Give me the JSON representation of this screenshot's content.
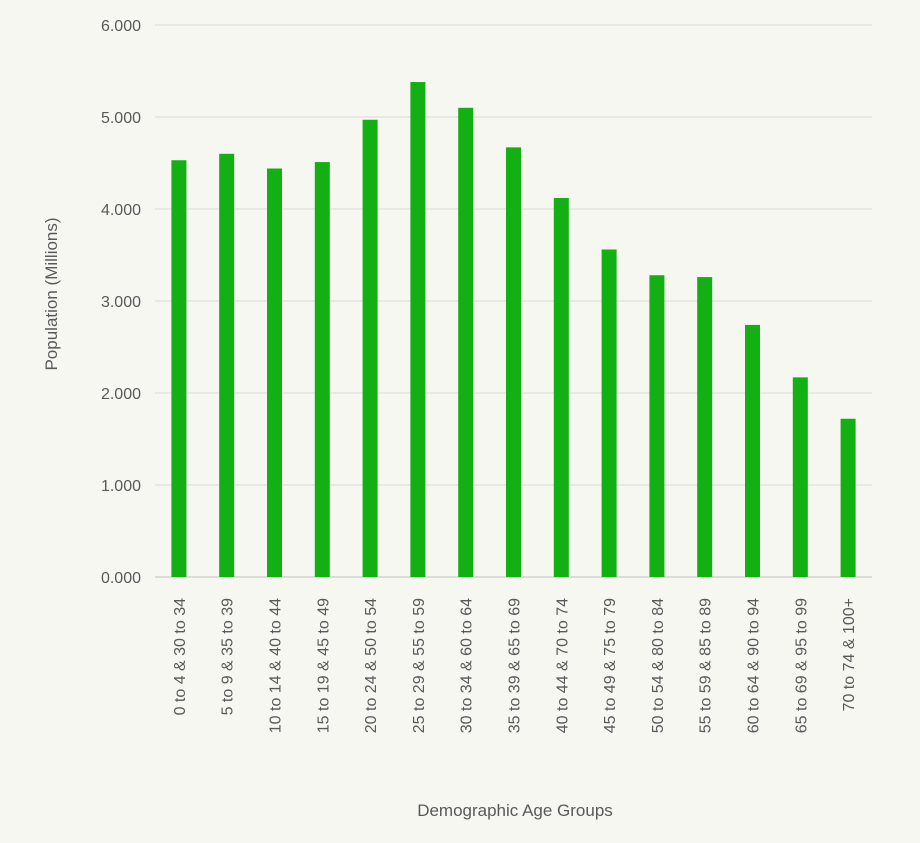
{
  "chart_data": {
    "type": "bar",
    "title": "",
    "xlabel": "Demographic Age Groups",
    "ylabel": "Population (Millions)",
    "ylim": [
      0,
      6
    ],
    "yticks": [
      "0.000",
      "1.000",
      "2.000",
      "3.000",
      "4.000",
      "5.000",
      "6.000"
    ],
    "grid": true,
    "legend": "none",
    "bar_color": "#12b012",
    "categories": [
      "0 to 4 & 30 to 34",
      "5 to 9 & 35 to 39",
      "10 to 14 & 40 to 44",
      "15 to 19 & 45 to 49",
      "20 to 24 & 50 to 54",
      "25 to 29 & 55 to 59",
      "30 to 34 & 60 to 64",
      "35 to 39 & 65 to 69",
      "40 to 44 & 70 to 74",
      "45 to 49 & 75 to 79",
      "50 to 54 & 80 to 84",
      "55 to 59 & 85 to 89",
      "60 to 64 & 90 to 94",
      "65 to 69 & 95 to 99",
      "70 to 74 & 100+"
    ],
    "values": [
      4.53,
      4.6,
      4.44,
      4.51,
      4.97,
      5.38,
      5.1,
      4.67,
      4.12,
      3.56,
      3.28,
      3.26,
      2.74,
      2.17,
      1.72
    ]
  }
}
